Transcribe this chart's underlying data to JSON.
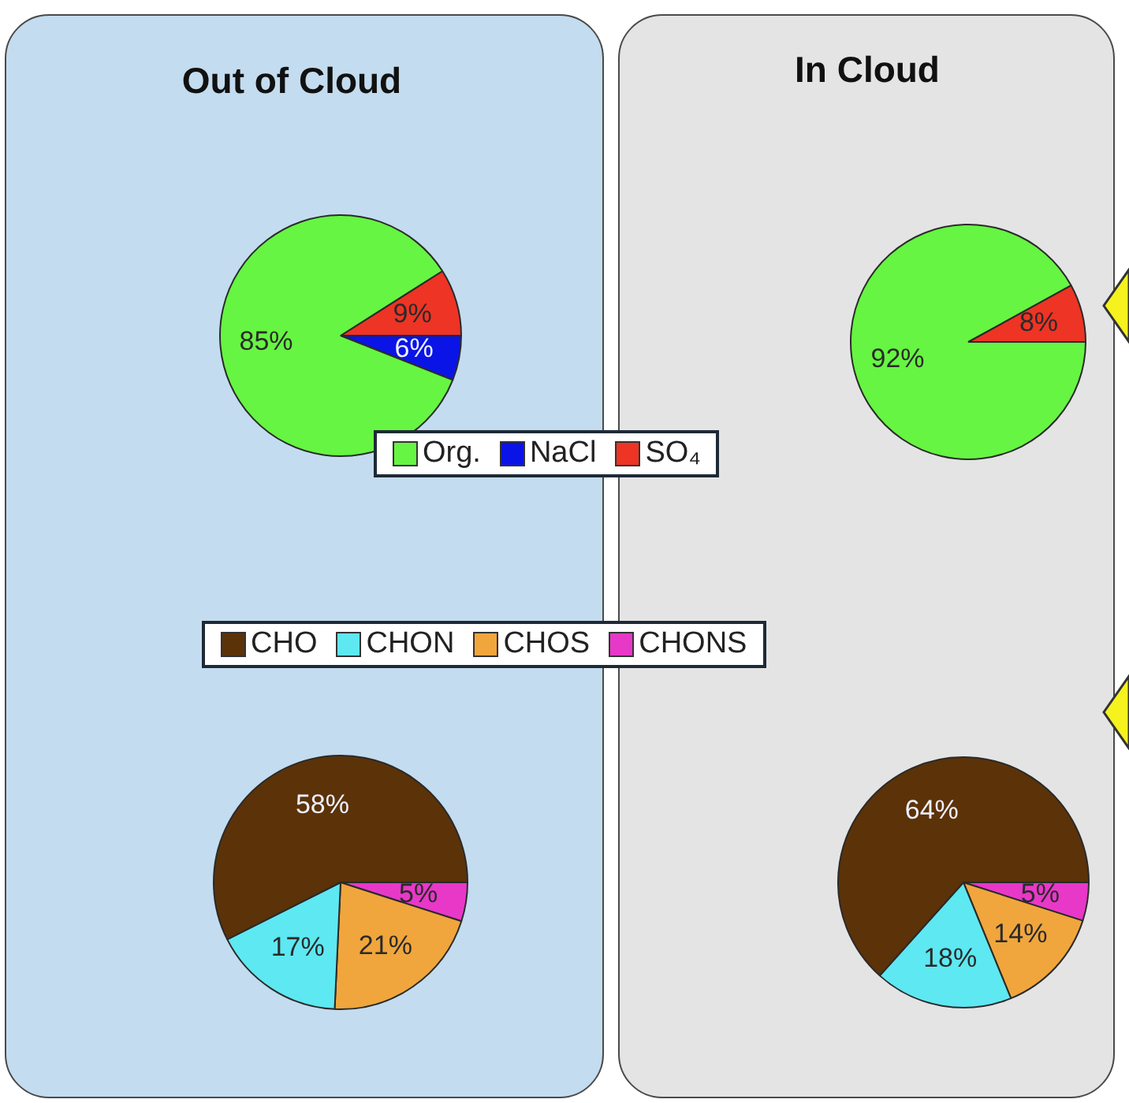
{
  "chart_data": [
    {
      "type": "pie",
      "title": "Out of Cloud",
      "categories": [
        "Org.",
        "NaCl",
        "SO₄"
      ],
      "values": [
        85,
        6,
        9
      ],
      "colors": [
        "#66f542",
        "#0a14e6",
        "#ee3424"
      ],
      "value_labels": [
        "85%",
        "6%",
        "9%"
      ],
      "legend": "bottom"
    },
    {
      "type": "pie",
      "title": "In Cloud",
      "categories": [
        null,
        null
      ],
      "values": [
        92,
        8
      ],
      "colors": [
        "#66f542",
        "#ee3424"
      ],
      "value_labels": [
        "92%",
        "8%"
      ]
    },
    {
      "type": "pie",
      "categories": [
        "CHO",
        "CHON",
        "CHOS",
        "CHONS"
      ],
      "values": [
        58,
        17,
        21,
        5
      ],
      "colors": [
        "#5c3208",
        "#5ee8f2",
        "#f0a63c",
        "#e838c8"
      ],
      "value_labels": [
        "58%",
        "17%",
        "21%",
        "5%"
      ],
      "legend": "top"
    },
    {
      "type": "pie",
      "categories": [
        null,
        null,
        null,
        null
      ],
      "values": [
        64,
        18,
        14,
        5
      ],
      "colors": [
        "#5c3208",
        "#5ee8f2",
        "#f0a63c",
        "#e838c8"
      ],
      "value_labels": [
        "64%",
        "18%",
        "14%",
        "5%"
      ]
    }
  ]
}
